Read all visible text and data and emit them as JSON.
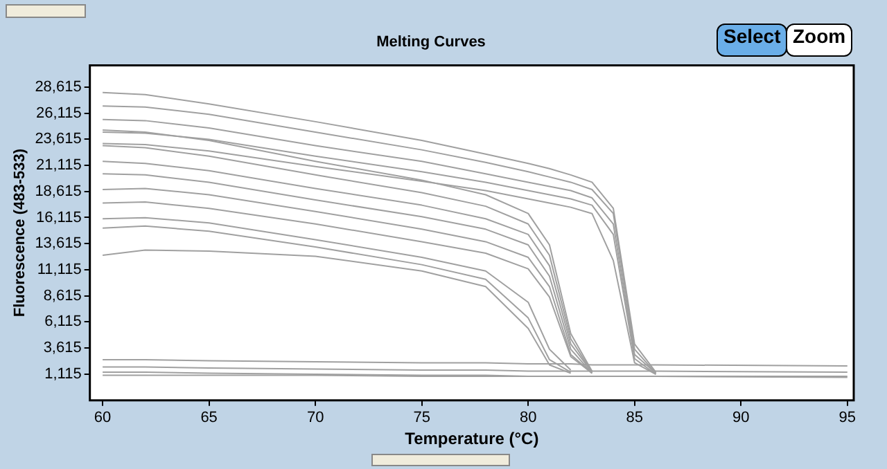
{
  "chart_data": {
    "type": "line",
    "title": "Melting Curves",
    "xlabel": "Temperature (°C)",
    "ylabel": "Fluorescence (483-533)",
    "annotations": [
      "Select",
      "Zoom"
    ],
    "x": [
      60,
      62,
      65,
      70,
      75,
      78,
      80,
      81,
      82,
      83,
      84,
      85,
      86,
      95
    ],
    "xlim": [
      59.4,
      95.3
    ],
    "xticks": [
      60,
      65,
      70,
      75,
      80,
      85,
      90,
      95
    ],
    "ylim": [
      -1400,
      30700
    ],
    "yticks": [
      {
        "value": 1115,
        "label": "1,115"
      },
      {
        "value": 3615,
        "label": "3,615"
      },
      {
        "value": 6115,
        "label": "6,115"
      },
      {
        "value": 8615,
        "label": "8,615"
      },
      {
        "value": 11115,
        "label": "11,115"
      },
      {
        "value": 13615,
        "label": "13,615"
      },
      {
        "value": 16115,
        "label": "16,115"
      },
      {
        "value": 18615,
        "label": "18,615"
      },
      {
        "value": 21115,
        "label": "21,115"
      },
      {
        "value": 23615,
        "label": "23,615"
      },
      {
        "value": 26115,
        "label": "26,115"
      },
      {
        "value": 28615,
        "label": "28,615"
      }
    ],
    "grid": false,
    "legend": false,
    "series": [
      {
        "color": "#a0a0a0",
        "values": [
          28100,
          27900,
          27000,
          25300,
          23500,
          22200,
          21300,
          20800,
          20200,
          19500,
          17000,
          4000,
          1300,
          null
        ]
      },
      {
        "color": "#a0a0a0",
        "values": [
          26800,
          26700,
          26000,
          24300,
          22600,
          21400,
          20500,
          20000,
          19500,
          18800,
          16500,
          3500,
          1200,
          null
        ]
      },
      {
        "color": "#a0a0a0",
        "values": [
          25500,
          25400,
          24700,
          23000,
          21500,
          20300,
          19500,
          19100,
          18700,
          18000,
          15500,
          3000,
          1200,
          null
        ]
      },
      {
        "color": "#a0a0a0",
        "values": [
          24300,
          24200,
          23600,
          22000,
          20500,
          19500,
          18700,
          18300,
          17900,
          17300,
          14500,
          2600,
          1100,
          null
        ]
      },
      {
        "color": "#a0a0a0",
        "values": [
          23200,
          23100,
          22500,
          21000,
          19600,
          18700,
          17900,
          17500,
          17100,
          16500,
          12000,
          2200,
          1100,
          null
        ]
      },
      {
        "color": "#a0a0a0",
        "values": [
          24500,
          24300,
          23500,
          21500,
          19700,
          18300,
          16500,
          13500,
          5000,
          1400,
          null,
          null,
          null,
          null
        ]
      },
      {
        "color": "#a0a0a0",
        "values": [
          23000,
          22800,
          22000,
          20200,
          18500,
          17200,
          15500,
          12500,
          4500,
          1300,
          null,
          null,
          null,
          null
        ]
      },
      {
        "color": "#a0a0a0",
        "values": [
          21500,
          21300,
          20600,
          18900,
          17300,
          16000,
          14500,
          11500,
          4000,
          1300,
          null,
          null,
          null,
          null
        ]
      },
      {
        "color": "#a0a0a0",
        "values": [
          20300,
          20200,
          19500,
          17800,
          16200,
          15000,
          13500,
          10500,
          3500,
          1200,
          null,
          null,
          null,
          null
        ]
      },
      {
        "color": "#a0a0a0",
        "values": [
          18800,
          18900,
          18300,
          16700,
          15000,
          13800,
          12300,
          9500,
          3000,
          1200,
          null,
          null,
          null,
          null
        ]
      },
      {
        "color": "#a0a0a0",
        "values": [
          17500,
          17600,
          17000,
          15500,
          13800,
          12700,
          11200,
          8500,
          2800,
          1200,
          null,
          null,
          null,
          null
        ]
      },
      {
        "color": "#a0a0a0",
        "values": [
          16000,
          16100,
          15600,
          14000,
          12300,
          11000,
          8000,
          3500,
          1500,
          null,
          null,
          null,
          null,
          null
        ]
      },
      {
        "color": "#a0a0a0",
        "values": [
          15100,
          15300,
          14800,
          13300,
          11600,
          10200,
          6500,
          2500,
          1300,
          null,
          null,
          null,
          null,
          null
        ]
      },
      {
        "color": "#a0a0a0",
        "values": [
          12500,
          13000,
          12900,
          12400,
          11000,
          9500,
          5500,
          2000,
          1200,
          null,
          null,
          null,
          null,
          null
        ]
      },
      {
        "color": "#a0a0a0",
        "values": [
          2500,
          2500,
          2400,
          2300,
          2200,
          2200,
          2100,
          2100,
          2100,
          2000,
          2000,
          2000,
          2000,
          1900
        ]
      },
      {
        "color": "#a0a0a0",
        "values": [
          1800,
          1800,
          1700,
          1600,
          1500,
          1500,
          1400,
          1400,
          1400,
          1400,
          1400,
          1400,
          1400,
          1300
        ]
      },
      {
        "color": "#a0a0a0",
        "values": [
          1300,
          1300,
          1200,
          1100,
          1000,
          1000,
          900,
          900,
          900,
          900,
          900,
          900,
          900,
          800
        ]
      },
      {
        "color": "#a0a0a0",
        "values": [
          1000,
          1000,
          1000,
          1000,
          900,
          900,
          900,
          900,
          900,
          900,
          900,
          900,
          900,
          900
        ]
      }
    ]
  }
}
